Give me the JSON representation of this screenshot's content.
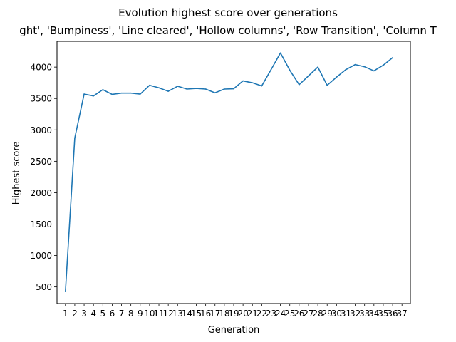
{
  "chart_data": {
    "type": "line",
    "title": "Evolution highest score over generations",
    "subtitle": "ght', 'Bumpiness', 'Line cleared', 'Hollow columns', 'Row Transition', 'Column T",
    "xlabel": "Generation",
    "ylabel": "Highest score",
    "x_ticks": [
      "1",
      "2",
      "3",
      "4",
      "5",
      "6",
      "7",
      "8",
      "9",
      "10",
      "11",
      "12",
      "13",
      "14",
      "15",
      "16",
      "17",
      "18",
      "19",
      "20",
      "21",
      "22",
      "23",
      "24",
      "25",
      "26",
      "27",
      "28",
      "29",
      "30",
      "31",
      "32",
      "33",
      "34",
      "35",
      "36",
      "37"
    ],
    "y_ticks": [
      500,
      1000,
      1500,
      2000,
      2500,
      3000,
      3500,
      4000
    ],
    "xlim": [
      0.1,
      37.9
    ],
    "ylim": [
      235,
      4410
    ],
    "grid": false,
    "series": [
      {
        "color": "#1f77b4",
        "x": [
          1,
          2,
          3,
          4,
          5,
          6,
          7,
          8,
          9,
          10,
          11,
          12,
          13,
          14,
          15,
          16,
          17,
          18,
          19,
          20,
          21,
          22,
          23,
          24,
          25,
          26,
          27,
          28,
          29,
          30,
          31,
          32,
          33,
          34,
          35,
          36
        ],
        "values": [
          425,
          2870,
          3570,
          3540,
          3640,
          3565,
          3585,
          3585,
          3570,
          3710,
          3670,
          3615,
          3695,
          3650,
          3660,
          3650,
          3590,
          3650,
          3655,
          3780,
          3750,
          3700,
          3960,
          4225,
          3950,
          3720,
          3860,
          4000,
          3710,
          3840,
          3960,
          4040,
          4005,
          3940,
          4030,
          4150
        ]
      }
    ]
  }
}
